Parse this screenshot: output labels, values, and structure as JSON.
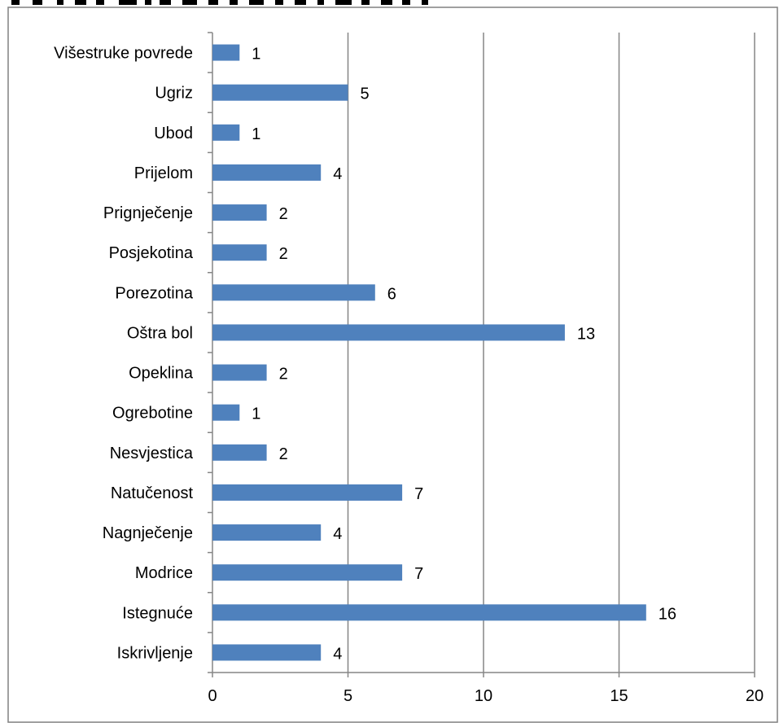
{
  "chart_data": {
    "type": "bar",
    "orientation": "horizontal",
    "title": "",
    "xlabel": "",
    "ylabel": "",
    "categories": [
      "Višestruke povrede",
      "Ugriz",
      "Ubod",
      "Prijelom",
      "Prignječenje",
      "Posjekotina",
      "Porezotina",
      "Oštra bol",
      "Opeklina",
      "Ogrebotine",
      "Nesvjestica",
      "Natučenost",
      "Nagnječenje",
      "Modrice",
      "Istegnuće",
      "Iskrivljenje"
    ],
    "values": [
      1,
      5,
      1,
      4,
      2,
      2,
      6,
      13,
      2,
      1,
      2,
      7,
      4,
      7,
      16,
      4
    ],
    "xlim": [
      0,
      20
    ],
    "xticks": [
      0,
      5,
      10,
      15,
      20
    ],
    "grid": "vertical-major",
    "legend": "none",
    "data_labels": true
  },
  "colors": {
    "bar": "#4F81BD",
    "grid": "#868686",
    "axis": "#868686",
    "frame": "#808080"
  }
}
